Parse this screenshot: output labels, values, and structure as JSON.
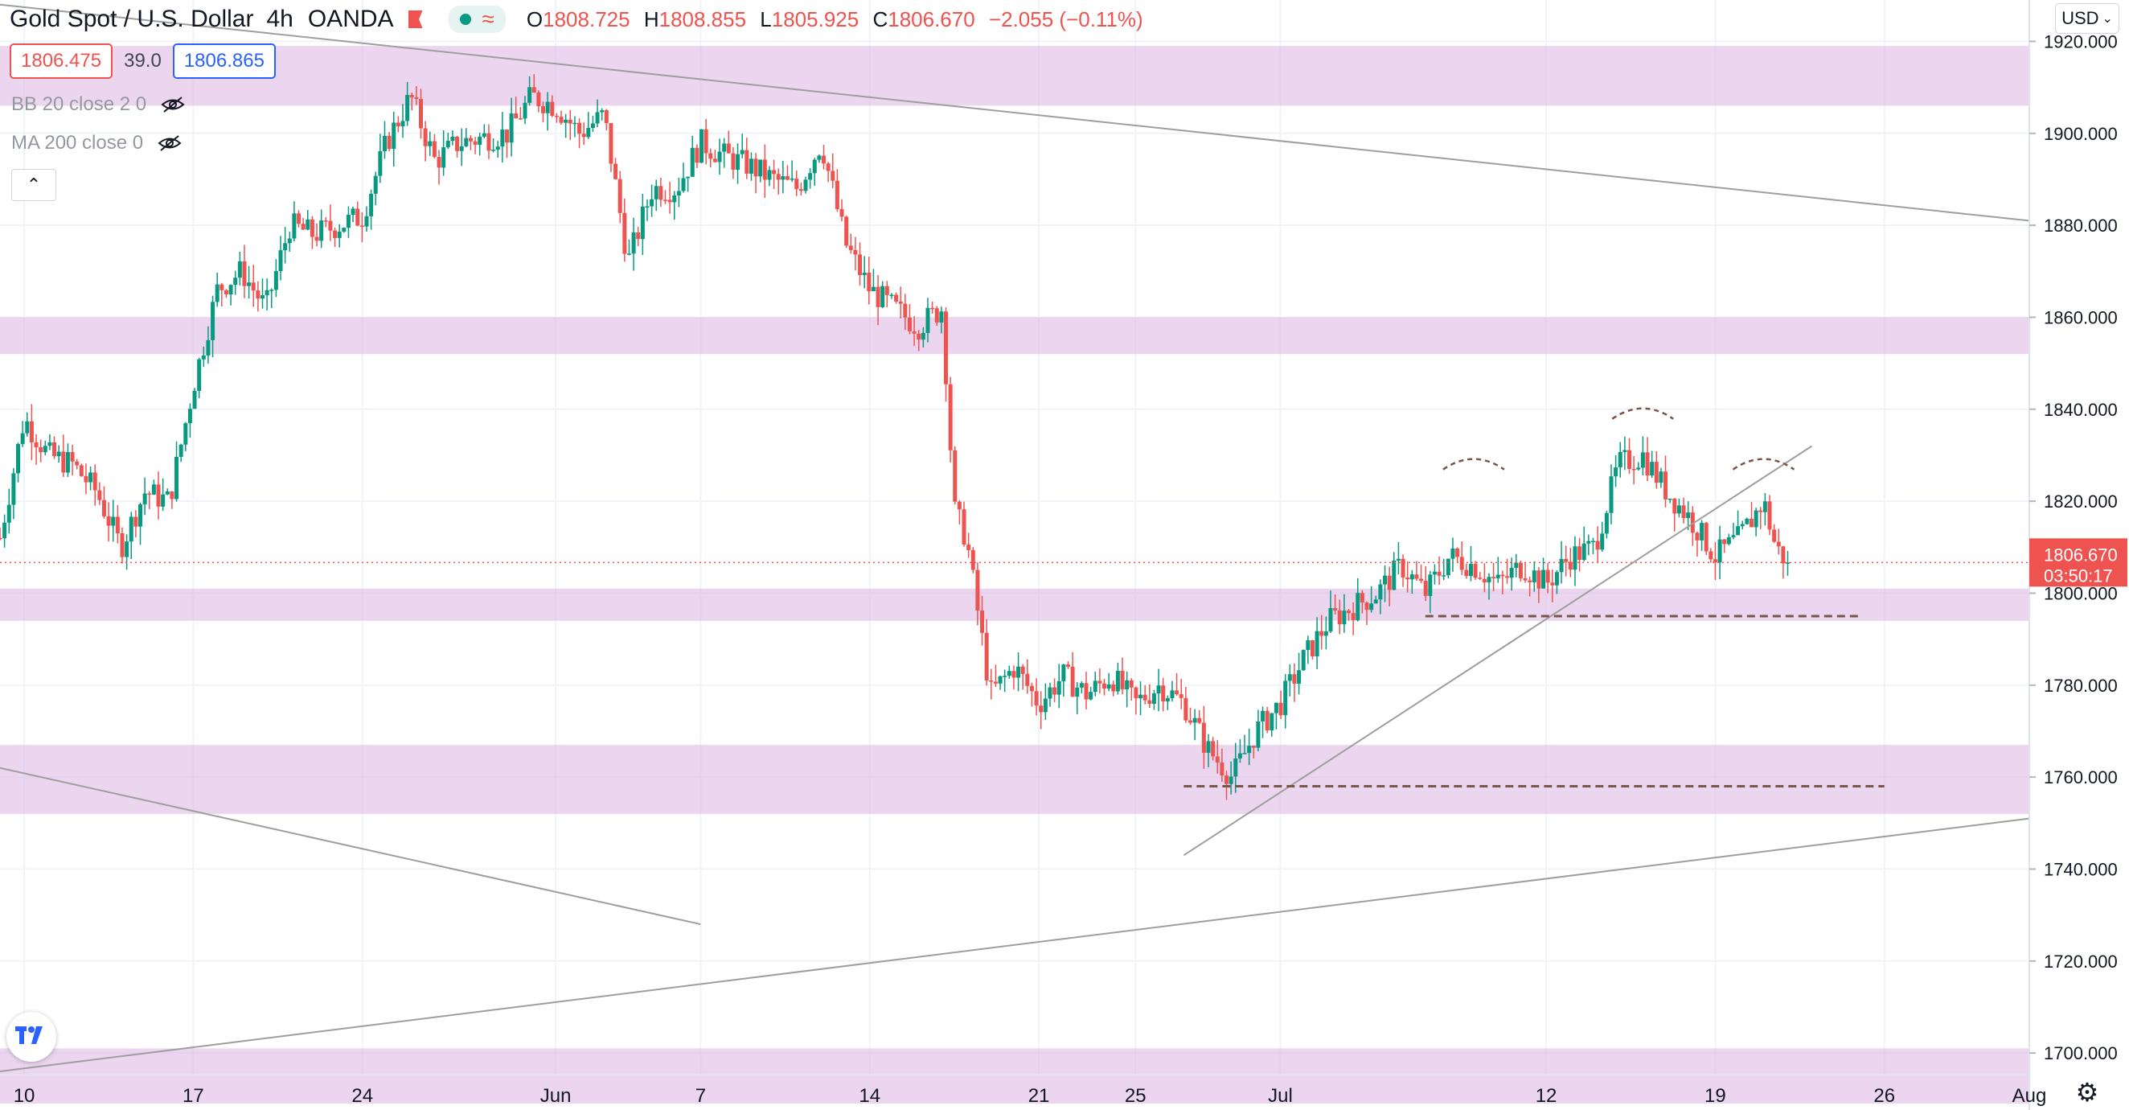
{
  "header": {
    "symbol_title": "Gold Spot / U.S. Dollar",
    "timeframe": "4h",
    "broker": "OANDA",
    "ohlc": {
      "o_label": "O",
      "o": "1808.725",
      "h_label": "H",
      "h": "1808.855",
      "l_label": "L",
      "l": "1805.925",
      "c_label": "C",
      "c": "1806.670",
      "change": "−2.055 (−0.11%)"
    }
  },
  "trade": {
    "sell_price": "1806.475",
    "spread": "39.0",
    "buy_price": "1806.865"
  },
  "indicators": [
    {
      "label": "BB 20 close 2 0"
    },
    {
      "label": "MA 200 close 0"
    }
  ],
  "currency_button": "USD",
  "current_price_label": "1806.670",
  "countdown": "03:50:17",
  "colors": {
    "up": "#089981",
    "down": "#ef5350",
    "zone": "#e1bee7",
    "trendline": "#9e9e9e",
    "dashed": "#795548",
    "grid": "#f0f3fa"
  },
  "icons": {
    "eye_hidden": "eye-off-icon",
    "collapse": "chevron-up-icon",
    "logo": "tradingview-logo-icon",
    "settings": "gear-icon",
    "currency_dropdown": "chevron-down-icon"
  },
  "chart_data": {
    "type": "candlestick",
    "title": "Gold Spot / U.S. Dollar",
    "ylim": [
      1696,
      1922
    ],
    "y_ticks": [
      "1700.000",
      "1720.000",
      "1740.000",
      "1760.000",
      "1780.000",
      "1800.000",
      "1820.000",
      "1840.000",
      "1860.000",
      "1880.000",
      "1900.000",
      "1920.000"
    ],
    "x_range": [
      "May 9",
      "Aug 1"
    ],
    "x_ticks": [
      {
        "label": "10",
        "date": "May 10"
      },
      {
        "label": "17",
        "date": "May 17"
      },
      {
        "label": "24",
        "date": "May 24"
      },
      {
        "label": "Jun",
        "date": "Jun 1"
      },
      {
        "label": "7",
        "date": "Jun 7"
      },
      {
        "label": "14",
        "date": "Jun 14"
      },
      {
        "label": "21",
        "date": "Jun 21"
      },
      {
        "label": "25",
        "date": "Jun 25"
      },
      {
        "label": "Jul",
        "date": "Jul 1"
      },
      {
        "label": "12",
        "date": "Jul 12"
      },
      {
        "label": "19",
        "date": "Jul 19"
      },
      {
        "label": "26",
        "date": "Jul 26"
      },
      {
        "label": "Aug",
        "date": "Aug 1"
      }
    ],
    "price_path": [
      [
        "May 9",
        1812
      ],
      [
        "May 10",
        1838
      ],
      [
        "May 11",
        1830
      ],
      [
        "May 12",
        1828
      ],
      [
        "May 13",
        1822
      ],
      [
        "May 14",
        1810
      ],
      [
        "May 15",
        1822
      ],
      [
        "May 16",
        1820
      ],
      [
        "May 17",
        1845
      ],
      [
        "May 18",
        1866
      ],
      [
        "May 19",
        1870
      ],
      [
        "May 20",
        1862
      ],
      [
        "May 21",
        1880
      ],
      [
        "May 22",
        1878
      ],
      [
        "May 24",
        1882
      ],
      [
        "May 25",
        1898
      ],
      [
        "May 26",
        1908
      ],
      [
        "May 27",
        1894
      ],
      [
        "May 28",
        1898
      ],
      [
        "May 30",
        1900
      ],
      [
        "May 31",
        1908
      ],
      [
        "Jun 1",
        1906
      ],
      [
        "Jun 2",
        1900
      ],
      [
        "Jun 3",
        1904
      ],
      [
        "Jun 4",
        1872
      ],
      [
        "Jun 5",
        1888
      ],
      [
        "Jun 6",
        1888
      ],
      [
        "Jun 7",
        1898
      ],
      [
        "Jun 8",
        1895
      ],
      [
        "Jun 9",
        1893
      ],
      [
        "Jun 10",
        1890
      ],
      [
        "Jun 11",
        1888
      ],
      [
        "Jun 12",
        1898
      ],
      [
        "Jun 13",
        1876
      ],
      [
        "Jun 14",
        1866
      ],
      [
        "Jun 15",
        1862
      ],
      [
        "Jun 16",
        1858
      ],
      [
        "Jun 17",
        1862
      ],
      [
        "Jun 17.5",
        1818
      ],
      [
        "Jun 18",
        1812
      ],
      [
        "Jun 19",
        1778
      ],
      [
        "Jun 20",
        1784
      ],
      [
        "Jun 21",
        1776
      ],
      [
        "Jun 22",
        1782
      ],
      [
        "Jun 23",
        1778
      ],
      [
        "Jun 24",
        1782
      ],
      [
        "Jun 25",
        1776
      ],
      [
        "Jun 26",
        1780
      ],
      [
        "Jun 27",
        1776
      ],
      [
        "Jun 28",
        1766
      ],
      [
        "Jun 29",
        1760
      ],
      [
        "Jun 30",
        1770
      ],
      [
        "Jul 1",
        1776
      ],
      [
        "Jul 2",
        1786
      ],
      [
        "Jul 3",
        1794
      ],
      [
        "Jul 5",
        1800
      ],
      [
        "Jul 6",
        1806
      ],
      [
        "Jul 7",
        1800
      ],
      [
        "Jul 8",
        1808
      ],
      [
        "Jul 9",
        1806
      ],
      [
        "Jul 10",
        1802
      ],
      [
        "Jul 11",
        1806
      ],
      [
        "Jul 12",
        1802
      ],
      [
        "Jul 13",
        1808
      ],
      [
        "Jul 14",
        1810
      ],
      [
        "Jul 15",
        1828
      ],
      [
        "Jul 16",
        1830
      ],
      [
        "Jul 17",
        1822
      ],
      [
        "Jul 18",
        1816
      ],
      [
        "Jul 19",
        1808
      ],
      [
        "Jul 20",
        1812
      ],
      [
        "Jul 21",
        1820
      ],
      [
        "Jul 21.5",
        1810
      ],
      [
        "Jul 22",
        1806.67
      ]
    ],
    "resistance_zones": [
      [
        1906,
        1919
      ],
      [
        1852,
        1860
      ],
      [
        1794,
        1801
      ],
      [
        1752,
        1767
      ],
      [
        1689,
        1701
      ]
    ],
    "trendlines": [
      {
        "from": [
          "May 9",
          1928
        ],
        "to": [
          "Aug 1",
          1881
        ]
      },
      {
        "from": [
          "May 9",
          1762
        ],
        "to": [
          "Jun 7",
          1728
        ]
      },
      {
        "from": [
          "May 9",
          1696
        ],
        "to": [
          "Aug 1",
          1751
        ]
      },
      {
        "from": [
          "Jun 27",
          1743
        ],
        "to": [
          "Jul 23",
          1832
        ]
      }
    ],
    "dashed_levels": [
      {
        "price": 1795,
        "from": "Jul 7",
        "to": "Jul 25"
      },
      {
        "price": 1758,
        "from": "Jun 27",
        "to": "Jul 26"
      }
    ],
    "last_price": 1806.67
  }
}
